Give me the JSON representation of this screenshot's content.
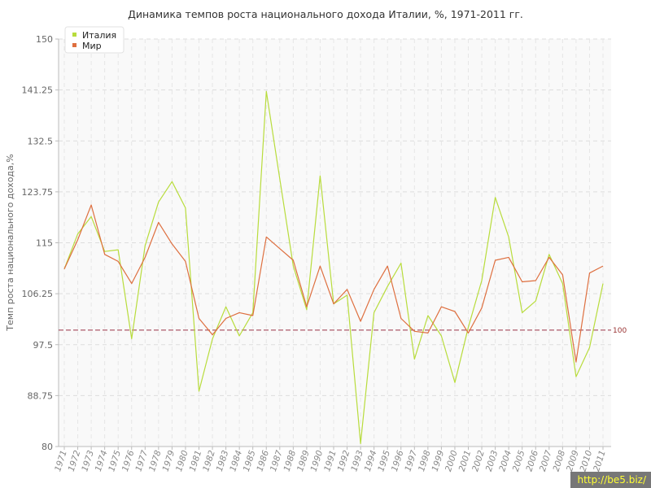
{
  "chart_data": {
    "type": "line",
    "title": "Динамика темпов роста национального дохода Италии, %, 1971-2011 гг.",
    "xlabel": "",
    "ylabel": "Темп роста национального дохода,%",
    "ylim": [
      80,
      150
    ],
    "yticks": [
      "80",
      "88.75",
      "97.5",
      "106.25",
      "115",
      "123.75",
      "132.5",
      "141.25",
      "150"
    ],
    "categories": [
      "1971",
      "1972",
      "1973",
      "1974",
      "1975",
      "1976",
      "1977",
      "1978",
      "1979",
      "1980",
      "1981",
      "1982",
      "1983",
      "1984",
      "1985",
      "1986",
      "1987",
      "1988",
      "1989",
      "1990",
      "1991",
      "1992",
      "1993",
      "1994",
      "1995",
      "1996",
      "1997",
      "1998",
      "1999",
      "2000",
      "2001",
      "2002",
      "2003",
      "2004",
      "2005",
      "2006",
      "2007",
      "2008",
      "2009",
      "2010",
      "2011"
    ],
    "series": [
      {
        "name": "Италия",
        "color": "#b8dc3c",
        "values": [
          110.5,
          116.5,
          119.5,
          113.5,
          113.8,
          98.5,
          114.5,
          122,
          125.5,
          121,
          89.5,
          98.5,
          104,
          99,
          103,
          141,
          126,
          111,
          103.5,
          126.5,
          104.5,
          106,
          80.5,
          103,
          107.5,
          111.5,
          95,
          102.5,
          99,
          91,
          100.5,
          108.5,
          122.8,
          116,
          103,
          105,
          113,
          108,
          92,
          97,
          108
        ]
      },
      {
        "name": "Мир",
        "color": "#de6f3f",
        "values": [
          110.5,
          115.5,
          121.5,
          113,
          111.8,
          108,
          112.5,
          118.5,
          114.8,
          111.8,
          102,
          99.2,
          102,
          103,
          102.5,
          116,
          114,
          112,
          104,
          111,
          104.5,
          107,
          101.5,
          107,
          111,
          102,
          99.8,
          99.5,
          104,
          103.2,
          99.5,
          103.8,
          112,
          112.5,
          108.3,
          108.5,
          112.5,
          109.5,
          94.5,
          109.8,
          111
        ]
      }
    ],
    "reference_line": {
      "value": 100,
      "label": "100",
      "color": "#993344"
    },
    "legend": "top-left",
    "grid": true
  },
  "watermark": "http://be5.biz/"
}
